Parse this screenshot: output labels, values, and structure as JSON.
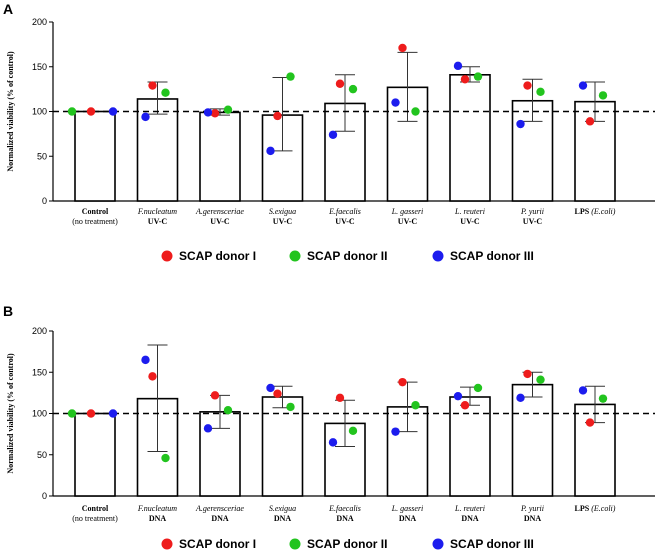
{
  "chart_data": [
    {
      "type": "bar",
      "panel": "A",
      "ylabel": "Normalized viability (% of control)",
      "ylim": [
        0,
        200
      ],
      "yticks": [
        0,
        50,
        100,
        150,
        200
      ],
      "reference_line": 100,
      "categories": [
        {
          "line1": "Control",
          "line2": "(no treatment)"
        },
        {
          "line1": "F.nucleatum",
          "line2": "UV-C"
        },
        {
          "line1": "A.gerensceriae",
          "line2": "UV-C"
        },
        {
          "line1": "S.exigua",
          "line2": "UV-C"
        },
        {
          "line1": "E.faecalis",
          "line2": "UV-C"
        },
        {
          "line1": "L. gasseri",
          "line2": "UV-C"
        },
        {
          "line1": "L. reuteri",
          "line2": "UV-C"
        },
        {
          "line1": "P. yurii",
          "line2": "UV-C"
        },
        {
          "line1": "LPS",
          "line1b": "(E.coli)",
          "line2": ""
        }
      ],
      "means": [
        100,
        114,
        99,
        96,
        109,
        127,
        141,
        112,
        111
      ],
      "error_low": [
        100,
        97,
        96,
        56,
        78,
        89,
        133,
        89,
        89
      ],
      "error_high": [
        100,
        133,
        103,
        138,
        141,
        166,
        150,
        136,
        133
      ],
      "series": [
        {
          "name": "SCAP donor I",
          "color": "#ee1c1c",
          "values": [
            100,
            129,
            98,
            95,
            131,
            171,
            136,
            129,
            89
          ]
        },
        {
          "name": "SCAP donor II",
          "color": "#22c41e",
          "values": [
            100,
            121,
            102,
            139,
            125,
            100,
            139,
            122,
            118
          ]
        },
        {
          "name": "SCAP donor III",
          "color": "#1c1cee",
          "values": [
            100,
            94,
            99,
            56,
            74,
            110,
            151,
            86,
            129
          ]
        }
      ]
    },
    {
      "type": "bar",
      "panel": "B",
      "ylabel": "Normalized viability (% of control)",
      "ylim": [
        0,
        200
      ],
      "yticks": [
        0,
        50,
        100,
        150,
        200
      ],
      "reference_line": 100,
      "categories": [
        {
          "line1": "Control",
          "line2": "(no treatment)"
        },
        {
          "line1": "F.nucleatum",
          "line2": "DNA"
        },
        {
          "line1": "A.gerensceriae",
          "line2": "DNA"
        },
        {
          "line1": "S.exigua",
          "line2": "DNA"
        },
        {
          "line1": "E.faecalis",
          "line2": "DNA"
        },
        {
          "line1": "L. gasseri",
          "line2": "DNA"
        },
        {
          "line1": "L. reuteri",
          "line2": "DNA"
        },
        {
          "line1": "P. yurii",
          "line2": "DNA"
        },
        {
          "line1": "LPS",
          "line1b": "(E.coli)",
          "line2": ""
        }
      ],
      "means": [
        100,
        118,
        102,
        120,
        88,
        108,
        120,
        135,
        111
      ],
      "error_low": [
        100,
        54,
        82,
        107,
        60,
        78,
        110,
        120,
        89
      ],
      "error_high": [
        100,
        183,
        122,
        133,
        116,
        138,
        132,
        150,
        133
      ],
      "series": [
        {
          "name": "SCAP donor I",
          "color": "#ee1c1c",
          "values": [
            100,
            145,
            122,
            124,
            119,
            138,
            110,
            148,
            89
          ]
        },
        {
          "name": "SCAP donor II",
          "color": "#22c41e",
          "values": [
            100,
            46,
            104,
            108,
            79,
            110,
            131,
            141,
            118
          ]
        },
        {
          "name": "SCAP donor III",
          "color": "#1c1cee",
          "values": [
            100,
            165,
            82,
            131,
            65,
            78,
            121,
            119,
            128
          ]
        }
      ]
    }
  ]
}
